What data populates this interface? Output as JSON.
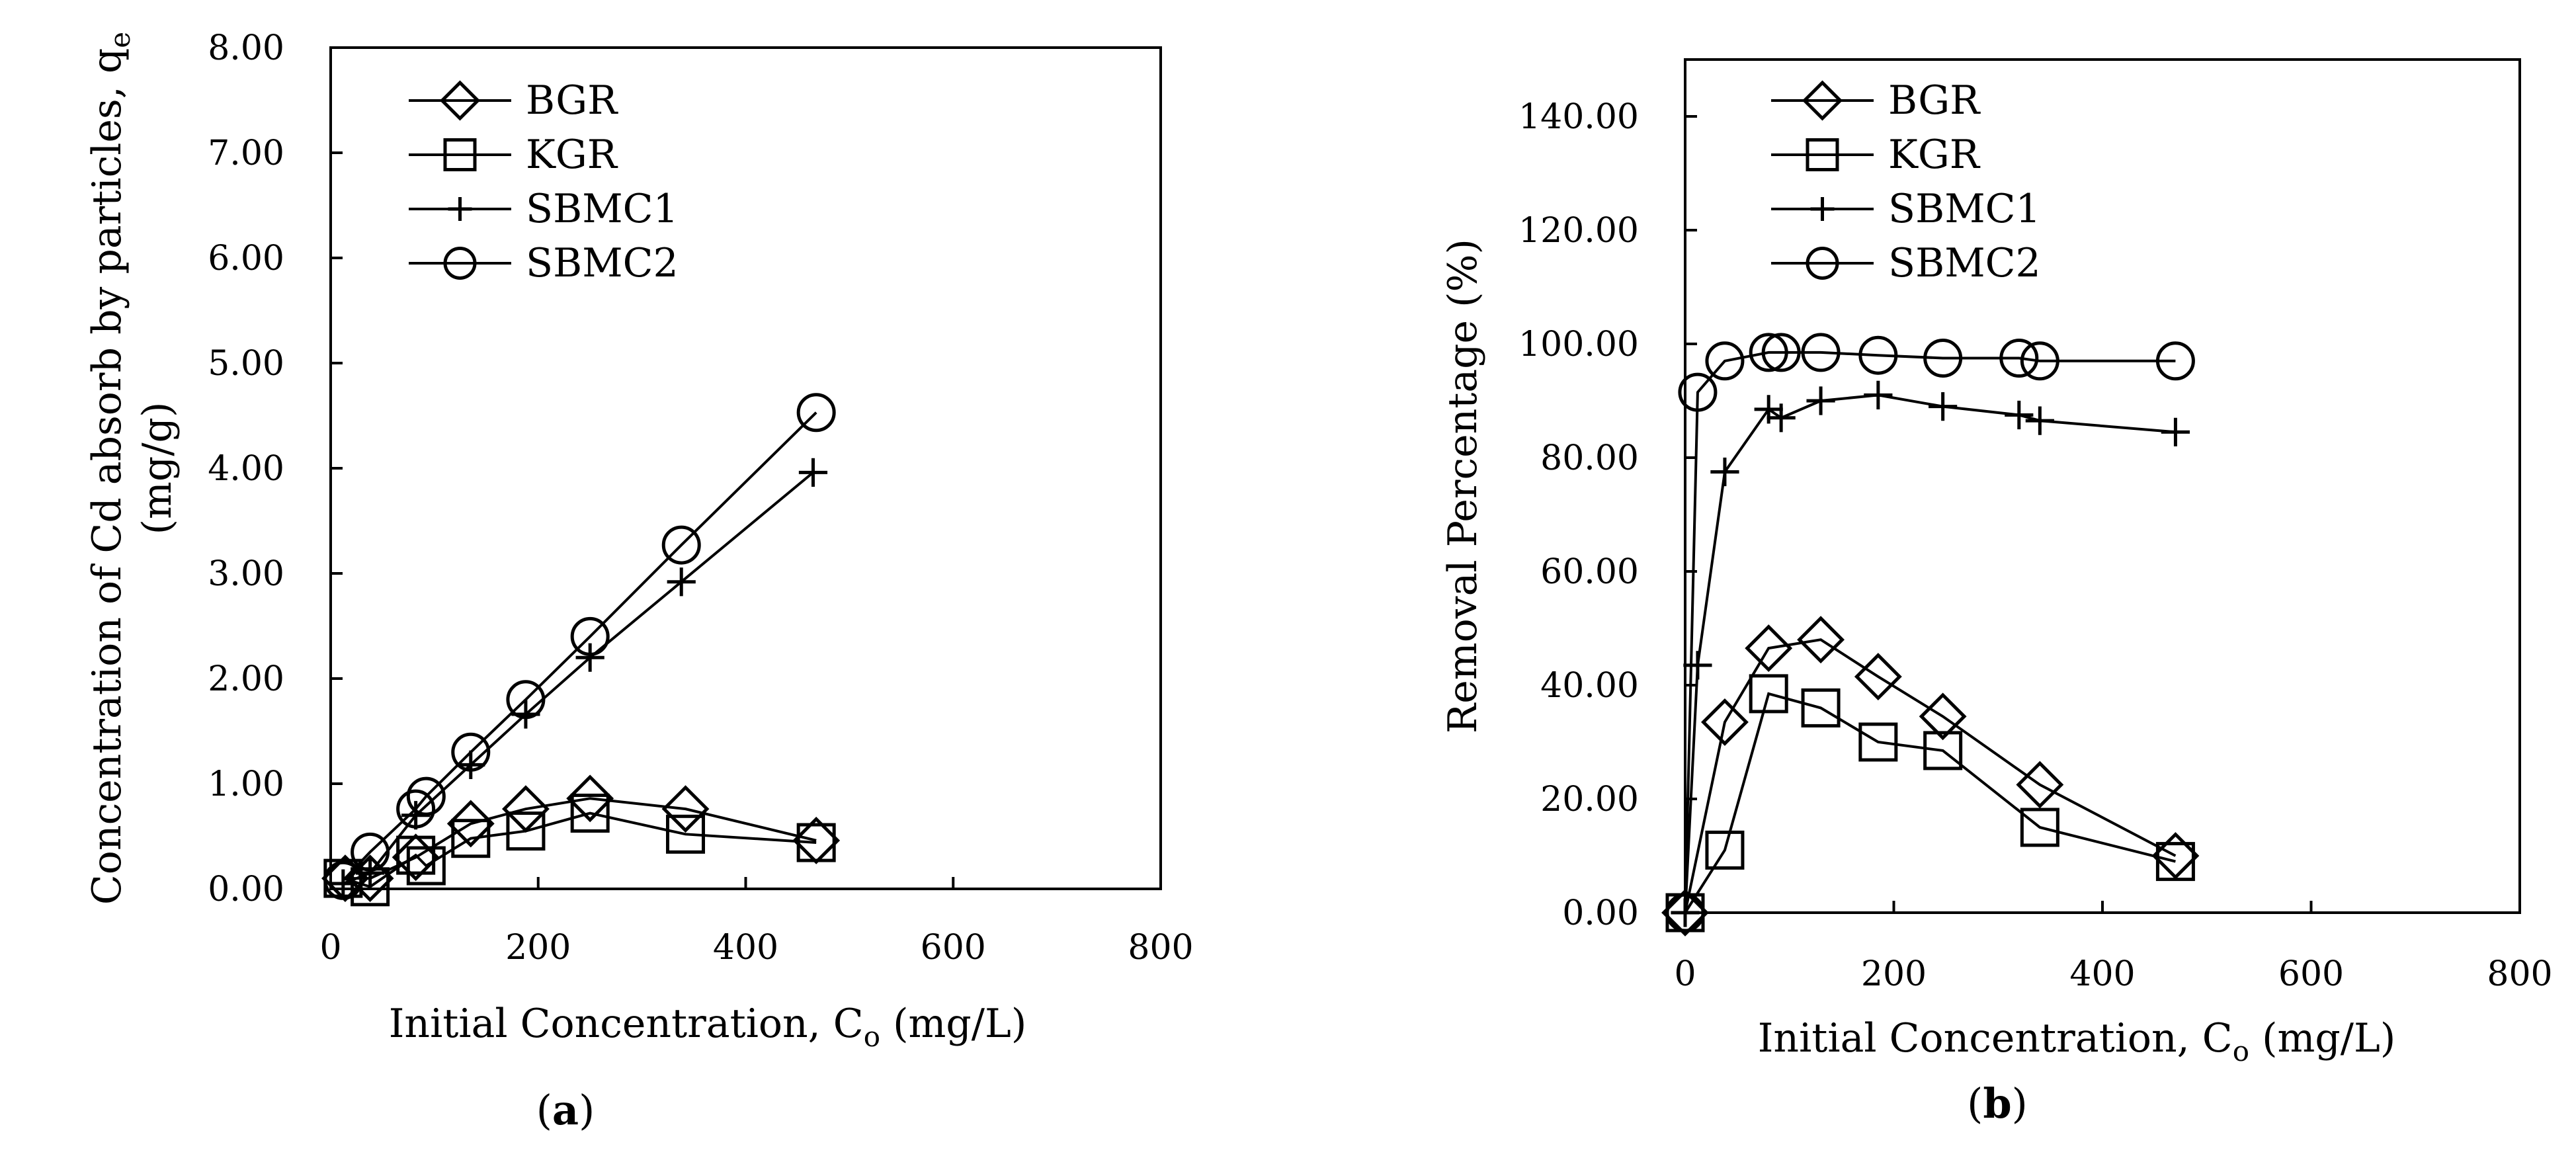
{
  "chart_data": [
    {
      "id": "a",
      "type": "line",
      "caption": "(a)",
      "caption_letter": "a",
      "xlabel": "Initial Concentration, C",
      "xlabel_sub": "o",
      "xlabel_unit": " (mg/L)",
      "ylabel_line1": "Concentration of Cd absorb by particles, q",
      "ylabel_line1_sub": "e",
      "ylabel_line2": "(mg/g)",
      "xlim": [
        0,
        800
      ],
      "ylim": [
        0,
        8
      ],
      "xticks": [
        0,
        200,
        400,
        600,
        800
      ],
      "xtick_labels": [
        "0",
        "200",
        "400",
        "600",
        "800"
      ],
      "yticks": [
        0,
        1,
        2,
        3,
        4,
        5,
        6,
        7,
        8
      ],
      "ytick_labels": [
        "0.00",
        "1.00",
        "2.00",
        "3.00",
        "4.00",
        "5.00",
        "6.00",
        "7.00",
        "8.00"
      ],
      "legend": [
        "BGR",
        "KGR",
        "SBMC1",
        "SBMC2"
      ],
      "series": [
        {
          "name": "BGR",
          "marker": "diamond",
          "points": [
            [
              14,
              0.1
            ],
            [
              38,
              0.1
            ],
            [
              82,
              0.3
            ],
            [
              135,
              0.62
            ],
            [
              188,
              0.76
            ],
            [
              250,
              0.86
            ],
            [
              342,
              0.76
            ],
            [
              468,
              0.46
            ]
          ]
        },
        {
          "name": "KGR",
          "marker": "square",
          "points": [
            [
              12,
              0.1
            ],
            [
              38,
              0.02
            ],
            [
              82,
              0.32
            ],
            [
              92,
              0.22
            ],
            [
              135,
              0.48
            ],
            [
              188,
              0.55
            ],
            [
              250,
              0.72
            ],
            [
              342,
              0.52
            ],
            [
              468,
              0.44
            ]
          ]
        },
        {
          "name": "SBMC1",
          "marker": "plus",
          "points": [
            [
              12,
              0.05
            ],
            [
              38,
              0.15
            ],
            [
              82,
              0.7
            ],
            [
              135,
              1.18
            ],
            [
              188,
              1.66
            ],
            [
              250,
              2.2
            ],
            [
              338,
              2.92
            ],
            [
              465,
              3.96
            ]
          ]
        },
        {
          "name": "SBMC2",
          "marker": "circle",
          "points": [
            [
              12,
              0.08
            ],
            [
              38,
              0.35
            ],
            [
              82,
              0.76
            ],
            [
              92,
              0.88
            ],
            [
              135,
              1.3
            ],
            [
              188,
              1.8
            ],
            [
              250,
              2.4
            ],
            [
              338,
              3.27
            ],
            [
              468,
              4.53
            ]
          ]
        }
      ]
    },
    {
      "id": "b",
      "type": "line",
      "caption": "(b)",
      "caption_letter": "b",
      "xlabel": "Initial Concentration, C",
      "xlabel_sub": "o",
      "xlabel_unit": " (mg/L)",
      "ylabel_line1": "Removal Percentage (%)",
      "xlim": [
        0,
        800
      ],
      "ylim": [
        0,
        150
      ],
      "xticks": [
        0,
        200,
        400,
        600,
        800
      ],
      "xtick_labels": [
        "0",
        "200",
        "400",
        "600",
        "800"
      ],
      "yticks": [
        0,
        20,
        40,
        60,
        80,
        100,
        120,
        140
      ],
      "ytick_labels": [
        "0.00",
        "20.00",
        "40.00",
        "60.00",
        "80.00",
        "100.00",
        "120.00",
        "140.00"
      ],
      "legend": [
        "BGR",
        "KGR",
        "SBMC1",
        "SBMC2"
      ],
      "series": [
        {
          "name": "BGR",
          "marker": "diamond",
          "points": [
            [
              0,
              0
            ],
            [
              38,
              33.5
            ],
            [
              80,
              46.5
            ],
            [
              130,
              48
            ],
            [
              185,
              41.5
            ],
            [
              247,
              34.5
            ],
            [
              340,
              22.5
            ],
            [
              470,
              10
            ]
          ]
        },
        {
          "name": "KGR",
          "marker": "square",
          "points": [
            [
              0,
              0
            ],
            [
              38,
              11
            ],
            [
              80,
              38.5
            ],
            [
              130,
              36
            ],
            [
              185,
              30
            ],
            [
              247,
              28.5
            ],
            [
              340,
              15
            ],
            [
              470,
              9
            ]
          ]
        },
        {
          "name": "SBMC1",
          "marker": "plus",
          "points": [
            [
              0,
              0
            ],
            [
              12,
              43.5
            ],
            [
              38,
              77.5
            ],
            [
              80,
              88.5
            ],
            [
              92,
              87
            ],
            [
              130,
              90
            ],
            [
              185,
              91
            ],
            [
              247,
              89
            ],
            [
              320,
              87.5
            ],
            [
              340,
              86.5
            ],
            [
              470,
              84.5
            ]
          ]
        },
        {
          "name": "SBMC2",
          "marker": "circle",
          "points": [
            [
              0,
              0
            ],
            [
              12,
              91.5
            ],
            [
              38,
              97
            ],
            [
              80,
              98.5
            ],
            [
              92,
              98.5
            ],
            [
              130,
              98.5
            ],
            [
              185,
              98
            ],
            [
              247,
              97.5
            ],
            [
              320,
              97.5
            ],
            [
              340,
              97
            ],
            [
              470,
              97
            ]
          ]
        }
      ]
    }
  ]
}
